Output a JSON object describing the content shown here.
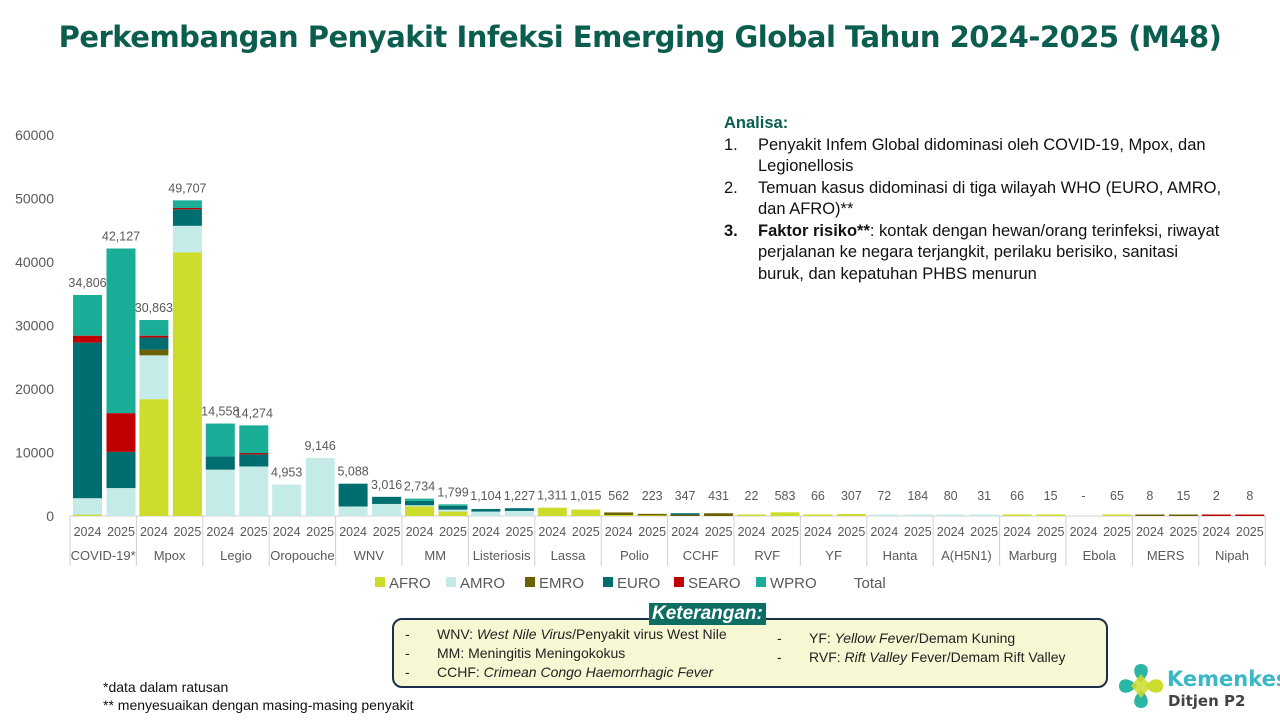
{
  "title": "Perkembangan Penyakit Infeksi Emerging Global Tahun 2024-2025 (M48)",
  "analisa": {
    "heading": "Analisa:",
    "items": [
      {
        "num": "1.",
        "bold": "",
        "text": "Penyakit Infem Global didominasi oleh COVID-19, Mpox, dan Legionellosis"
      },
      {
        "num": "2.",
        "bold": "",
        "text": "Temuan kasus didominasi di tiga wilayah WHO (EURO, AMRO, dan AFRO)**"
      },
      {
        "num": "3.",
        "bold": "Faktor risiko**",
        "text": ": kontak dengan hewan/orang terinfeksi, riwayat perjalanan ke negara terjangkit, perilaku berisiko, sanitasi buruk, dan kepatuhan PHBS menurun"
      }
    ]
  },
  "keterangan": {
    "title": "Keterangan:",
    "dash": "-",
    "left": [
      {
        "abbr": "WNV: ",
        "italic": "West Nile Virus",
        "rest": "/Penyakit virus West Nile"
      },
      {
        "abbr": "MM: ",
        "italic": "",
        "rest": "Meningitis Meningokokus"
      },
      {
        "abbr": "CCHF: ",
        "italic": "Crimean Congo Haemorrhagic Fever",
        "rest": ""
      }
    ],
    "right": [
      {
        "abbr": "YF: ",
        "italic": "Yellow Fever",
        "rest": "/Demam Kuning"
      },
      {
        "abbr": "RVF: ",
        "italic": "Rift Valley",
        "rest": " Fever/Demam Rift Valley"
      }
    ]
  },
  "footnotes": [
    "*data dalam ratusan",
    "** menyesuaikan dengan masing-masing penyakit"
  ],
  "logo": {
    "name": "Kemenkes",
    "sub": "Ditjen P2"
  },
  "chart_data": {
    "type": "bar",
    "stacked": true,
    "title": "Perkembangan Penyakit Infeksi Emerging Global Tahun 2024-2025 (M48)",
    "ylim": [
      0,
      60000
    ],
    "yticks": [
      0,
      10000,
      20000,
      30000,
      40000,
      50000,
      60000
    ],
    "groups": [
      "COVID-19*",
      "Mpox",
      "Legio",
      "Oropouche",
      "WNV",
      "MM",
      "Listeriosis",
      "Lassa",
      "Polio",
      "CCHF",
      "RVF",
      "YF",
      "Hanta",
      "A(H5N1)",
      "Marburg",
      "Ebola",
      "MERS",
      "Nipah"
    ],
    "years": [
      "2024",
      "2025"
    ],
    "total_labels": [
      "34,806",
      "42,127",
      "30,863",
      "49,707",
      "14,558",
      "14,274",
      "4,953",
      "9,146",
      "5,088",
      "3,016",
      "2,734",
      "1,799",
      "1,104",
      "1,227",
      "1,311",
      "1,015",
      "562",
      "223",
      "347",
      "431",
      "22",
      "583",
      "66",
      "307",
      "72",
      "184",
      "80",
      "31",
      "66",
      "15",
      "-",
      "65",
      "8",
      "15",
      "2",
      "8"
    ],
    "series": [
      {
        "name": "AFRO",
        "color": "#cddc2a",
        "values": [
          200,
          0,
          18400,
          41500,
          0,
          0,
          0,
          0,
          0,
          0,
          1500,
          700,
          0,
          0,
          1311,
          1015,
          162,
          100,
          0,
          0,
          22,
          583,
          66,
          307,
          0,
          0,
          0,
          0,
          66,
          15,
          0,
          65,
          0,
          0,
          0,
          0
        ]
      },
      {
        "name": "AMRO",
        "color": "#c5ebe8",
        "values": [
          2600,
          4400,
          6900,
          4200,
          7300,
          7800,
          4953,
          9146,
          1500,
          1900,
          200,
          300,
          700,
          800,
          0,
          0,
          0,
          0,
          0,
          0,
          0,
          0,
          0,
          0,
          72,
          184,
          80,
          31,
          0,
          0,
          0,
          0,
          0,
          0,
          0,
          0
        ]
      },
      {
        "name": "EMRO",
        "color": "#6b6100",
        "values": [
          0,
          0,
          900,
          0,
          0,
          0,
          0,
          0,
          0,
          0,
          0,
          0,
          0,
          0,
          0,
          0,
          400,
          123,
          200,
          431,
          0,
          0,
          0,
          0,
          0,
          0,
          0,
          0,
          0,
          0,
          0,
          0,
          8,
          15,
          0,
          0
        ]
      },
      {
        "name": "EURO",
        "color": "#006d70",
        "values": [
          24500,
          5700,
          1900,
          2600,
          2100,
          1900,
          0,
          0,
          3588,
          1116,
          700,
          600,
          404,
          427,
          0,
          0,
          0,
          0,
          147,
          0,
          0,
          0,
          0,
          0,
          0,
          0,
          0,
          0,
          0,
          0,
          0,
          0,
          0,
          0,
          0,
          0
        ]
      },
      {
        "name": "SEARO",
        "color": "#c00000",
        "values": [
          1100,
          6100,
          300,
          200,
          0,
          200,
          0,
          0,
          0,
          0,
          0,
          0,
          0,
          0,
          0,
          0,
          0,
          0,
          0,
          0,
          0,
          0,
          0,
          0,
          0,
          0,
          0,
          0,
          0,
          0,
          0,
          0,
          0,
          0,
          2,
          8
        ]
      },
      {
        "name": "WPRO",
        "color": "#1aae98",
        "values": [
          6406,
          25927,
          2463,
          1207,
          5158,
          4374,
          0,
          0,
          0,
          0,
          334,
          199,
          0,
          0,
          0,
          0,
          0,
          0,
          0,
          0,
          0,
          0,
          0,
          0,
          0,
          0,
          0,
          0,
          0,
          0,
          0,
          0,
          0,
          0,
          0,
          0
        ]
      }
    ],
    "legend": [
      "AFRO",
      "AMRO",
      "EMRO",
      "EURO",
      "SEARO",
      "WPRO",
      "Total"
    ],
    "legend_position": "bottom"
  }
}
